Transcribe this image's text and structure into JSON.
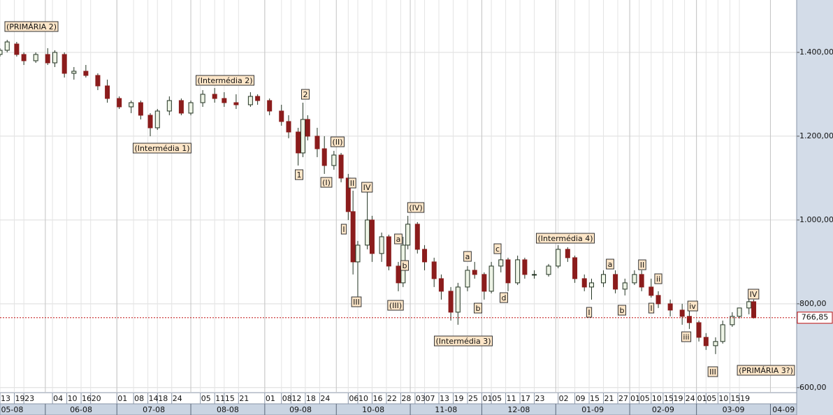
{
  "chart_data": {
    "type": "candlestick",
    "up_color": "#eef4e6",
    "down_color": "#8b1c1c",
    "outline_color": "#223322",
    "grid": true,
    "xlim": [
      "2008-05-13",
      "2009-04-12"
    ],
    "ylim": [
      588,
      1525
    ],
    "yticks": [
      {
        "value": 600,
        "label": "600,00"
      },
      {
        "value": 800,
        "label": "800,00"
      },
      {
        "value": 1000,
        "label": "1.000,00"
      },
      {
        "value": 1200,
        "label": "1.200,00"
      },
      {
        "value": 1400,
        "label": "1.400,00"
      }
    ],
    "last_price": {
      "value": 766.85,
      "label": "766,85"
    },
    "xticks": [
      {
        "value": "2008-05-13",
        "label": "13"
      },
      {
        "value": "2008-05-19",
        "label": "19"
      },
      {
        "value": "2008-05-23",
        "label": "23"
      },
      {
        "value": "2008-06-04",
        "label": "04"
      },
      {
        "value": "2008-06-10",
        "label": "10"
      },
      {
        "value": "2008-06-16",
        "label": "16"
      },
      {
        "value": "2008-06-20",
        "label": "20"
      },
      {
        "value": "2008-07-01",
        "label": "01"
      },
      {
        "value": "2008-07-08",
        "label": "08"
      },
      {
        "value": "2008-07-14",
        "label": "14"
      },
      {
        "value": "2008-07-18",
        "label": "18"
      },
      {
        "value": "2008-07-24",
        "label": "24"
      },
      {
        "value": "2008-08-05",
        "label": "05"
      },
      {
        "value": "2008-08-11",
        "label": "11"
      },
      {
        "value": "2008-08-15",
        "label": "15"
      },
      {
        "value": "2008-08-21",
        "label": "21"
      },
      {
        "value": "2008-09-01",
        "label": "01"
      },
      {
        "value": "2008-09-08",
        "label": "08"
      },
      {
        "value": "2008-09-12",
        "label": "12"
      },
      {
        "value": "2008-09-18",
        "label": "18"
      },
      {
        "value": "2008-09-24",
        "label": "24"
      },
      {
        "value": "2008-10-06",
        "label": "06"
      },
      {
        "value": "2008-10-10",
        "label": "10"
      },
      {
        "value": "2008-10-16",
        "label": "16"
      },
      {
        "value": "2008-10-22",
        "label": "22"
      },
      {
        "value": "2008-10-28",
        "label": "28"
      },
      {
        "value": "2008-11-03",
        "label": "03"
      },
      {
        "value": "2008-11-07",
        "label": "07"
      },
      {
        "value": "2008-11-13",
        "label": "13"
      },
      {
        "value": "2008-11-19",
        "label": "19"
      },
      {
        "value": "2008-11-25",
        "label": "25"
      },
      {
        "value": "2008-12-01",
        "label": "01"
      },
      {
        "value": "2008-12-05",
        "label": "05"
      },
      {
        "value": "2008-12-11",
        "label": "11"
      },
      {
        "value": "2008-12-17",
        "label": "17"
      },
      {
        "value": "2008-12-23",
        "label": "23"
      },
      {
        "value": "2009-01-02",
        "label": "02"
      },
      {
        "value": "2009-01-09",
        "label": "09"
      },
      {
        "value": "2009-01-15",
        "label": "15"
      },
      {
        "value": "2009-01-21",
        "label": "21"
      },
      {
        "value": "2009-01-27",
        "label": "27"
      },
      {
        "value": "2009-02-01",
        "label": "01"
      },
      {
        "value": "2009-02-05",
        "label": "05"
      },
      {
        "value": "2009-02-10",
        "label": "10"
      },
      {
        "value": "2009-02-15",
        "label": "15"
      },
      {
        "value": "2009-02-19",
        "label": "19"
      },
      {
        "value": "2009-02-24",
        "label": "24"
      },
      {
        "value": "2009-03-01",
        "label": "01"
      },
      {
        "value": "2009-03-05",
        "label": "05"
      },
      {
        "value": "2009-03-10",
        "label": "10"
      },
      {
        "value": "2009-03-15",
        "label": "15"
      },
      {
        "value": "2009-03-19",
        "label": "19"
      }
    ],
    "months": [
      {
        "value": "2008-05-01",
        "label": "05-08"
      },
      {
        "value": "2008-06-01",
        "label": "06-08"
      },
      {
        "value": "2008-07-01",
        "label": "07-08"
      },
      {
        "value": "2008-08-01",
        "label": "08-08"
      },
      {
        "value": "2008-09-01",
        "label": "09-08"
      },
      {
        "value": "2008-10-01",
        "label": "10-08"
      },
      {
        "value": "2008-11-01",
        "label": "11-08"
      },
      {
        "value": "2008-12-01",
        "label": "12-08"
      },
      {
        "value": "2009-01-01",
        "label": "01-09"
      },
      {
        "value": "2009-02-01",
        "label": "02-09"
      },
      {
        "value": "2009-03-01",
        "label": "03-09"
      },
      {
        "value": "2009-04-01",
        "label": "04-09"
      }
    ],
    "x": [
      "2008-05-13",
      "2008-05-16",
      "2008-05-20",
      "2008-05-23",
      "2008-05-28",
      "2008-06-02",
      "2008-06-05",
      "2008-06-09",
      "2008-06-13",
      "2008-06-18",
      "2008-06-23",
      "2008-06-27",
      "2008-07-02",
      "2008-07-07",
      "2008-07-11",
      "2008-07-15",
      "2008-07-18",
      "2008-07-23",
      "2008-07-28",
      "2008-08-01",
      "2008-08-06",
      "2008-08-11",
      "2008-08-15",
      "2008-08-20",
      "2008-08-26",
      "2008-08-29",
      "2008-09-03",
      "2008-09-08",
      "2008-09-11",
      "2008-09-15",
      "2008-09-17",
      "2008-09-19",
      "2008-09-23",
      "2008-09-26",
      "2008-09-30",
      "2008-10-03",
      "2008-10-06",
      "2008-10-08",
      "2008-10-10",
      "2008-10-14",
      "2008-10-16",
      "2008-10-20",
      "2008-10-23",
      "2008-10-27",
      "2008-10-29",
      "2008-10-31",
      "2008-11-04",
      "2008-11-07",
      "2008-11-11",
      "2008-11-14",
      "2008-11-18",
      "2008-11-21",
      "2008-11-25",
      "2008-11-28",
      "2008-12-02",
      "2008-12-05",
      "2008-12-09",
      "2008-12-12",
      "2008-12-16",
      "2008-12-19",
      "2008-12-23",
      "2008-12-29",
      "2009-01-02",
      "2009-01-06",
      "2009-01-09",
      "2009-01-13",
      "2009-01-16",
      "2009-01-21",
      "2009-01-26",
      "2009-01-30",
      "2009-02-03",
      "2009-02-06",
      "2009-02-10",
      "2009-02-13",
      "2009-02-18",
      "2009-02-23",
      "2009-02-26",
      "2009-03-02",
      "2009-03-05",
      "2009-03-09",
      "2009-03-12",
      "2009-03-16",
      "2009-03-19",
      "2009-03-23",
      "2009-03-25"
    ],
    "open": [
      1395,
      1405,
      1420,
      1395,
      1380,
      1395,
      1375,
      1395,
      1350,
      1355,
      1345,
      1320,
      1290,
      1270,
      1280,
      1250,
      1220,
      1260,
      1285,
      1255,
      1280,
      1300,
      1290,
      1280,
      1275,
      1295,
      1285,
      1260,
      1235,
      1210,
      1160,
      1240,
      1200,
      1170,
      1130,
      1155,
      1100,
      1020,
      900,
      940,
      1000,
      920,
      960,
      890,
      850,
      940,
      990,
      930,
      900,
      860,
      830,
      780,
      840,
      880,
      870,
      830,
      890,
      905,
      850,
      905,
      870,
      870,
      890,
      930,
      910,
      860,
      840,
      850,
      870,
      835,
      850,
      870,
      840,
      820,
      800,
      785,
      770,
      755,
      720,
      700,
      710,
      750,
      770,
      790,
      805
    ],
    "high": [
      1410,
      1430,
      1425,
      1400,
      1400,
      1410,
      1405,
      1400,
      1365,
      1370,
      1350,
      1335,
      1295,
      1285,
      1285,
      1255,
      1265,
      1295,
      1290,
      1285,
      1310,
      1315,
      1305,
      1300,
      1305,
      1300,
      1290,
      1275,
      1250,
      1220,
      1280,
      1250,
      1220,
      1200,
      1165,
      1160,
      1110,
      1070,
      950,
      1070,
      1010,
      970,
      965,
      900,
      960,
      1010,
      995,
      940,
      910,
      870,
      840,
      850,
      890,
      900,
      875,
      900,
      920,
      910,
      915,
      910,
      880,
      895,
      940,
      935,
      915,
      870,
      860,
      880,
      880,
      860,
      880,
      880,
      860,
      830,
      810,
      800,
      790,
      760,
      730,
      720,
      760,
      780,
      790,
      815,
      810
    ],
    "low": [
      1390,
      1400,
      1390,
      1370,
      1375,
      1370,
      1365,
      1340,
      1335,
      1340,
      1310,
      1280,
      1265,
      1255,
      1240,
      1200,
      1215,
      1250,
      1250,
      1250,
      1270,
      1280,
      1270,
      1265,
      1270,
      1275,
      1250,
      1225,
      1195,
      1130,
      1150,
      1190,
      1150,
      1110,
      1120,
      1090,
      1000,
      870,
      810,
      930,
      900,
      900,
      880,
      830,
      840,
      930,
      920,
      880,
      840,
      810,
      760,
      750,
      830,
      860,
      810,
      825,
      875,
      830,
      845,
      860,
      860,
      865,
      885,
      900,
      850,
      830,
      810,
      840,
      825,
      820,
      845,
      830,
      815,
      790,
      770,
      750,
      740,
      710,
      690,
      680,
      705,
      745,
      765,
      775,
      765
    ],
    "close": [
      1405,
      1425,
      1395,
      1380,
      1395,
      1375,
      1400,
      1350,
      1355,
      1345,
      1320,
      1290,
      1270,
      1280,
      1250,
      1220,
      1260,
      1285,
      1255,
      1280,
      1300,
      1290,
      1280,
      1275,
      1295,
      1285,
      1260,
      1235,
      1210,
      1160,
      1240,
      1200,
      1170,
      1130,
      1155,
      1100,
      1020,
      900,
      940,
      1000,
      920,
      960,
      890,
      850,
      940,
      990,
      930,
      900,
      860,
      830,
      780,
      840,
      880,
      870,
      830,
      890,
      905,
      850,
      905,
      870,
      870,
      890,
      930,
      910,
      860,
      840,
      850,
      870,
      835,
      850,
      870,
      840,
      820,
      800,
      785,
      770,
      755,
      720,
      700,
      710,
      750,
      770,
      790,
      805,
      766.85
    ],
    "annotations": [
      "(PRIMÁRIA 2)",
      "(Intermédia 2)",
      "(Intermédia 1)",
      "2",
      "1",
      "(II)",
      "(I)",
      "II",
      "IV",
      "I",
      "III",
      "(IV)",
      "a",
      "b",
      "(III)",
      "a",
      "b",
      "(Intermédia 3)",
      "c",
      "d",
      "(Intermédia 4)",
      "I",
      "a",
      "b",
      "II",
      "ii",
      "I",
      "iv",
      "iii",
      "III",
      "IV",
      "(PRIMÁRIA 3?)"
    ]
  }
}
